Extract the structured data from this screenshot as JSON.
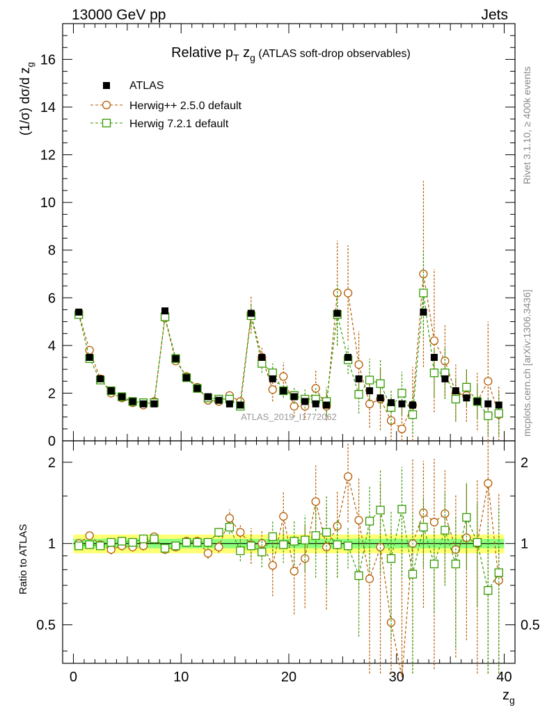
{
  "header": {
    "beam": "13000 GeV pp",
    "process": "Jets"
  },
  "side_labels": {
    "rivet": "Rivet 3.1.10, ≥ 400k events",
    "mcplots": "mcplots.cern.ch [arXiv:1306.3436]"
  },
  "chart_data": {
    "type": "scatter",
    "title_main": "Relative p",
    "title_sub_T": "T",
    "title_z": " z",
    "title_sub_g": "g",
    "title_suffix": " (ATLAS soft-drop observables)",
    "watermark": "ATLAS_2019_I1772062",
    "ylabel_main": "(1/σ) dσ/d z",
    "ylabel_sub": "g",
    "ylabel_ratio": "Ratio to ATLAS",
    "xlabel": "z",
    "xlabel_sub": "g",
    "xlim": [
      -1,
      41
    ],
    "ylim_main": [
      0,
      17.5
    ],
    "ylim_ratio": [
      0.36,
      2.4
    ],
    "x_ticks": [
      0,
      10,
      20,
      30,
      40
    ],
    "y_ticks_main": [
      0,
      2,
      4,
      6,
      8,
      10,
      12,
      14,
      16
    ],
    "y_ticks_ratio": [
      0.5,
      1,
      2
    ],
    "x": [
      0.5,
      1.5,
      2.5,
      3.5,
      4.5,
      5.5,
      6.5,
      7.5,
      8.5,
      9.5,
      10.5,
      11.5,
      12.5,
      13.5,
      14.5,
      15.5,
      16.5,
      17.5,
      18.5,
      19.5,
      20.5,
      21.5,
      22.5,
      23.5,
      24.5,
      25.5,
      26.5,
      27.5,
      28.5,
      29.5,
      30.5,
      31.5,
      32.5,
      33.5,
      34.5,
      35.5,
      36.5,
      37.5,
      38.5,
      39.5
    ],
    "series": [
      {
        "name": "ATLAS",
        "color": "#000000",
        "marker": "square-filled",
        "values": [
          5.4,
          3.5,
          2.6,
          2.1,
          1.85,
          1.65,
          1.55,
          1.55,
          5.45,
          3.45,
          2.65,
          2.2,
          1.85,
          1.7,
          1.55,
          1.5,
          5.35,
          3.5,
          2.6,
          2.1,
          1.85,
          1.65,
          1.55,
          1.5,
          5.35,
          3.5,
          2.6,
          2.1,
          1.8,
          1.6,
          1.55,
          1.5,
          5.4,
          3.5,
          2.6,
          2.1,
          1.8,
          1.65,
          1.55,
          1.5
        ],
        "ratio_band_color": "#7fff7f",
        "ratio_band_outer": "#ffff66"
      },
      {
        "name": "Herwig++ 2.5.0 default",
        "color": "#b35a00",
        "marker": "circle-open",
        "values": [
          5.35,
          3.8,
          2.6,
          2.0,
          1.8,
          1.6,
          1.5,
          1.65,
          5.15,
          3.35,
          2.7,
          2.25,
          1.7,
          1.65,
          1.9,
          1.65,
          5.3,
          3.5,
          2.15,
          2.7,
          1.45,
          1.45,
          2.2,
          1.45,
          6.2,
          6.2,
          3.2,
          1.55,
          1.75,
          0.85,
          0.5,
          1.5,
          7.0,
          4.2,
          3.35,
          2.0,
          1.9,
          1.65,
          2.5,
          1.1
        ],
        "ratios": [
          1.0,
          1.07,
          0.99,
          0.95,
          0.98,
          0.97,
          0.98,
          1.06,
          0.95,
          0.97,
          1.02,
          1.02,
          0.92,
          0.97,
          1.24,
          1.1,
          0.99,
          1.0,
          0.83,
          1.26,
          0.79,
          0.88,
          1.43,
          0.97,
          1.16,
          1.77,
          1.22,
          0.74,
          0.97,
          0.51,
          0.32,
          1.0,
          1.3,
          1.2,
          1.29,
          0.95,
          1.05,
          1.0,
          1.67,
          0.73
        ],
        "errors": [
          0.1,
          0.1,
          0.08,
          0.08,
          0.07,
          0.06,
          0.06,
          0.07,
          0.1,
          0.1,
          0.1,
          0.08,
          0.08,
          0.08,
          0.15,
          0.12,
          0.8,
          0.4,
          0.5,
          0.6,
          0.45,
          0.5,
          0.8,
          0.6,
          2.2,
          2.0,
          1.4,
          1.0,
          1.3,
          1.0,
          1.2,
          1.6,
          3.9,
          3.0,
          1.5,
          1.2,
          1.1,
          1.2,
          2.5,
          1.2
        ]
      },
      {
        "name": "Herwig 7.2.1 default",
        "color": "#339900",
        "marker": "square-open",
        "values": [
          5.3,
          3.45,
          2.55,
          2.1,
          1.85,
          1.65,
          1.6,
          1.6,
          5.2,
          3.45,
          2.65,
          2.2,
          1.8,
          1.75,
          1.75,
          1.45,
          5.25,
          3.25,
          2.85,
          2.1,
          1.9,
          1.75,
          1.75,
          1.65,
          5.3,
          3.4,
          1.95,
          2.55,
          2.4,
          1.4,
          2.0,
          1.1,
          6.2,
          2.85,
          2.85,
          1.75,
          2.25,
          1.65,
          1.05,
          1.15
        ],
        "ratios": [
          0.98,
          0.99,
          0.98,
          1.01,
          1.02,
          1.01,
          1.04,
          1.04,
          0.96,
          0.98,
          1.01,
          1.01,
          1.01,
          1.1,
          1.15,
          0.94,
          0.98,
          0.93,
          1.06,
          0.99,
          1.02,
          1.03,
          1.07,
          1.1,
          0.99,
          0.98,
          0.76,
          1.21,
          1.33,
          0.88,
          1.34,
          0.77,
          1.15,
          0.84,
          1.12,
          0.84,
          1.25,
          1.01,
          0.67,
          0.78
        ],
        "errors": [
          0.1,
          0.1,
          0.08,
          0.08,
          0.07,
          0.06,
          0.06,
          0.07,
          0.1,
          0.1,
          0.1,
          0.08,
          0.08,
          0.08,
          0.1,
          0.12,
          0.5,
          0.4,
          0.4,
          0.3,
          0.35,
          0.4,
          0.5,
          0.6,
          1.3,
          0.6,
          0.8,
          0.9,
          1.0,
          0.7,
          0.9,
          0.8,
          1.8,
          1.0,
          1.1,
          0.9,
          0.8,
          0.7,
          0.8,
          0.9
        ]
      }
    ]
  }
}
